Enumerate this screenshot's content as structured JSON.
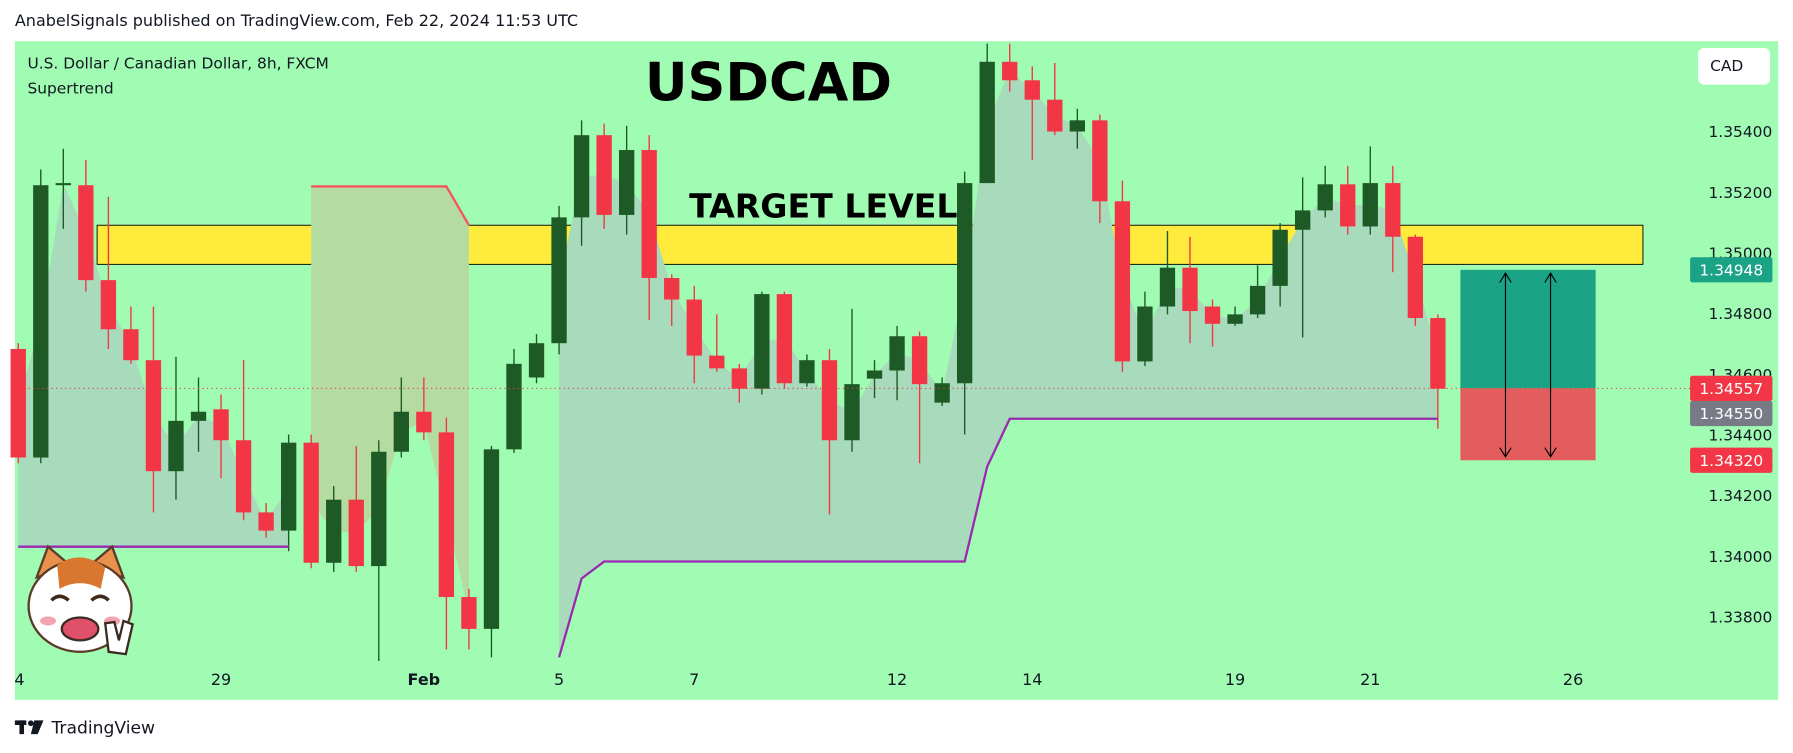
{
  "header": "AnabelSignals published on TradingView.com, Feb 22, 2024 11:53 UTC",
  "footer": "TradingView",
  "chart_data": {
    "type": "candlestick",
    "title": "USDCAD",
    "symbol": "U.S. Dollar / Canadian Dollar, 8h, FXCM",
    "indicator": "Supertrend",
    "currency": "CAD",
    "up_color": "#1e5a26",
    "down_color": "#f23645",
    "background": "#9ffcb2",
    "ohlc": [
      [
        1.34687,
        1.34706,
        1.3431,
        1.34329
      ],
      [
        1.34329,
        1.35279,
        1.3431,
        1.35227
      ],
      [
        1.35227,
        1.35347,
        1.35083,
        1.35234
      ],
      [
        1.35227,
        1.3531,
        1.34876,
        1.34914
      ],
      [
        1.34914,
        1.35189,
        1.34687,
        1.34752
      ],
      [
        1.34752,
        1.34827,
        1.34638,
        1.3465
      ],
      [
        1.3465,
        1.34827,
        1.34148,
        1.34284
      ],
      [
        1.34284,
        1.34661,
        1.3419,
        1.3445
      ],
      [
        1.3445,
        1.34593,
        1.34348,
        1.3448
      ],
      [
        1.34488,
        1.34537,
        1.34261,
        1.34386
      ],
      [
        1.34386,
        1.3465,
        1.34122,
        1.34148
      ],
      [
        1.34148,
        1.34179,
        1.34065,
        1.34088
      ],
      [
        1.34088,
        1.34405,
        1.3402,
        1.34378
      ],
      [
        1.34378,
        1.34405,
        1.33964,
        1.33982
      ],
      [
        1.33982,
        1.34235,
        1.33952,
        1.3419
      ],
      [
        1.3419,
        1.34367,
        1.33952,
        1.33971
      ],
      [
        1.33971,
        1.34386,
        1.33658,
        1.34348
      ],
      [
        1.34348,
        1.34593,
        1.34329,
        1.3448
      ],
      [
        1.3448,
        1.34593,
        1.34386,
        1.34412
      ],
      [
        1.34412,
        1.34461,
        1.33696,
        1.33869
      ],
      [
        1.33869,
        1.33896,
        1.33696,
        1.33764
      ],
      [
        1.33764,
        1.34367,
        1.3367,
        1.34356
      ],
      [
        1.34356,
        1.34687,
        1.34344,
        1.34638
      ],
      [
        1.34593,
        1.34736,
        1.34574,
        1.34706
      ],
      [
        1.34706,
        1.35159,
        1.34669,
        1.35121
      ],
      [
        1.35121,
        1.35441,
        1.35027,
        1.35392
      ],
      [
        1.35392,
        1.3543,
        1.35083,
        1.35129
      ],
      [
        1.35129,
        1.35423,
        1.35064,
        1.35343
      ],
      [
        1.35343,
        1.35392,
        1.34782,
        1.34921
      ],
      [
        1.34921,
        1.34933,
        1.34763,
        1.3485
      ],
      [
        1.3485,
        1.34895,
        1.34574,
        1.34665
      ],
      [
        1.34665,
        1.34801,
        1.34612,
        1.34623
      ],
      [
        1.34623,
        1.34638,
        1.3451,
        1.34556
      ],
      [
        1.34556,
        1.34876,
        1.34537,
        1.34868
      ],
      [
        1.34868,
        1.34876,
        1.34556,
        1.34574
      ],
      [
        1.34574,
        1.34669,
        1.34563,
        1.3465
      ],
      [
        1.3465,
        1.34687,
        1.34141,
        1.34386
      ],
      [
        1.34386,
        1.34819,
        1.34348,
        1.34571
      ],
      [
        1.34589,
        1.3465,
        1.34525,
        1.34616
      ],
      [
        1.34616,
        1.34763,
        1.34518,
        1.34729
      ],
      [
        1.34729,
        1.34744,
        1.3431,
        1.34571
      ],
      [
        1.3451,
        1.34593,
        1.34499,
        1.34574
      ],
      [
        1.34574,
        1.35272,
        1.34405,
        1.35234
      ],
      [
        1.35234,
        1.35694,
        1.35234,
        1.35634
      ],
      [
        1.35634,
        1.35694,
        1.35536,
        1.35573
      ],
      [
        1.35573,
        1.35619,
        1.3531,
        1.35509
      ],
      [
        1.35509,
        1.3563,
        1.35392,
        1.35404
      ],
      [
        1.35404,
        1.35479,
        1.35347,
        1.35441
      ],
      [
        1.35441,
        1.3546,
        1.35102,
        1.35174
      ],
      [
        1.35174,
        1.35242,
        1.34612,
        1.34646
      ],
      [
        1.34646,
        1.34876,
        1.34631,
        1.34827
      ],
      [
        1.34827,
        1.35076,
        1.34801,
        1.34955
      ],
      [
        1.34955,
        1.35057,
        1.34706,
        1.34812
      ],
      [
        1.34827,
        1.3485,
        1.34695,
        1.3477
      ],
      [
        1.3477,
        1.34827,
        1.34763,
        1.34801
      ],
      [
        1.34801,
        1.34963,
        1.34789,
        1.34895
      ],
      [
        1.34895,
        1.35102,
        1.34827,
        1.3508
      ],
      [
        1.3508,
        1.35253,
        1.34725,
        1.35144
      ],
      [
        1.35144,
        1.35291,
        1.35121,
        1.3523
      ],
      [
        1.3523,
        1.35291,
        1.35064,
        1.35091
      ],
      [
        1.35091,
        1.35355,
        1.35064,
        1.35234
      ],
      [
        1.35234,
        1.35291,
        1.3494,
        1.35057
      ],
      [
        1.35057,
        1.35064,
        1.34763,
        1.34789
      ],
      [
        1.34789,
        1.34801,
        1.34424,
        1.34556
      ]
    ],
    "xlim": [
      -0.15,
      78.1
    ],
    "xticks": [
      {
        "value": 0,
        "label": "4"
      },
      {
        "value": 9,
        "label": "29"
      },
      {
        "value": 18,
        "label": "Feb"
      },
      {
        "value": 24,
        "label": "5"
      },
      {
        "value": 30,
        "label": "7"
      },
      {
        "value": 39,
        "label": "12"
      },
      {
        "value": 45,
        "label": "14"
      },
      {
        "value": 54,
        "label": "19"
      },
      {
        "value": 60,
        "label": "21"
      },
      {
        "value": 69,
        "label": "26"
      }
    ],
    "ylim": [
      1.3353,
      1.35702
    ],
    "yticks": [
      {
        "value": 1.338,
        "label": "1.33800"
      },
      {
        "value": 1.34,
        "label": "1.34000"
      },
      {
        "value": 1.342,
        "label": "1.34200"
      },
      {
        "value": 1.344,
        "label": "1.34400"
      },
      {
        "value": 1.346,
        "label": "1.34600"
      },
      {
        "value": 1.348,
        "label": "1.34800"
      },
      {
        "value": 1.35,
        "label": "1.35000"
      },
      {
        "value": 1.352,
        "label": "1.35200"
      },
      {
        "value": 1.354,
        "label": "1.35400"
      }
    ],
    "series": [
      {
        "color": "#9c27b0",
        "fill": "#a7dbbc",
        "values": [
          1.34035,
          1.34035,
          1.34035,
          1.34035,
          1.34035,
          1.34035,
          1.34035,
          1.34035,
          1.34035,
          1.34035,
          1.34035,
          1.34035,
          1.34035,
          null,
          null,
          null,
          null,
          null,
          null,
          null,
          null,
          null,
          null,
          null,
          1.3367,
          1.3393,
          1.33986,
          1.33986,
          1.33986,
          1.33986,
          1.33986,
          1.33986,
          1.33986,
          1.33986,
          1.33986,
          1.33986,
          1.33986,
          1.33986,
          1.33986,
          1.33986,
          1.33986,
          1.33986,
          1.33986,
          1.34299,
          1.34457,
          1.34457,
          1.34457,
          1.34457,
          1.34457,
          1.34457,
          1.34457,
          1.34457,
          1.34457,
          1.34457,
          1.34457,
          1.34457,
          1.34457,
          1.34457,
          1.34457,
          1.34457,
          1.34457,
          1.34457,
          1.34457,
          1.34457
        ]
      },
      {
        "color": "#f7525f",
        "fill": "#b5dca0",
        "values": [
          null,
          null,
          null,
          null,
          null,
          null,
          null,
          null,
          null,
          null,
          null,
          null,
          null,
          1.35223,
          1.35223,
          1.35223,
          1.35223,
          1.35223,
          1.35223,
          1.35223,
          1.35095,
          null,
          null,
          null,
          null,
          null,
          null,
          null,
          null,
          null,
          null,
          null,
          null,
          null,
          null,
          null,
          null,
          null,
          null,
          null,
          null,
          null,
          null,
          null,
          null,
          null,
          null,
          null,
          null,
          null,
          null,
          null,
          null,
          null,
          null,
          null,
          null,
          null,
          null,
          null,
          null,
          null,
          null,
          null
        ]
      }
    ],
    "zone": {
      "label": "TARGET LEVEL",
      "top": 1.35095,
      "bottom": 1.34966,
      "start": 3.5,
      "end": 72.1,
      "color": "#ffeb3b"
    },
    "position": {
      "start": 64,
      "end": 70,
      "target": 1.34948,
      "entry": 1.34557,
      "stop": 1.3432,
      "profit_color": "#1ba386",
      "loss_color": "#e35d5d"
    },
    "price_tags": [
      {
        "value": 1.34948,
        "label": "1.34948",
        "color": "#1ba386"
      },
      {
        "value": 1.34557,
        "label": "1.34557",
        "color": "#f23645"
      },
      {
        "value": 1.3455,
        "label": "1.34550",
        "color": "#787b86"
      },
      {
        "value": 1.3432,
        "label": "1.34320",
        "color": "#f23645"
      }
    ]
  }
}
